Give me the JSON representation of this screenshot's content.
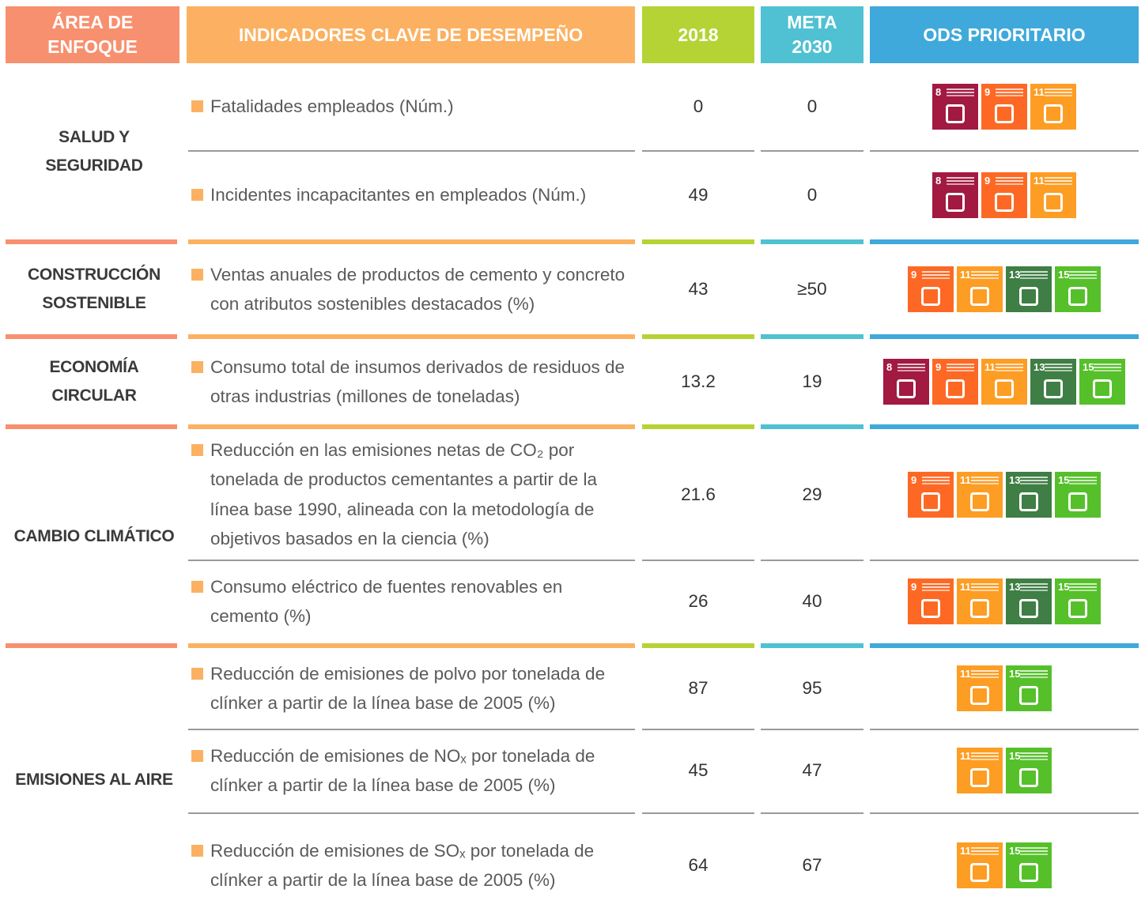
{
  "header": {
    "area": "ÁREA DE ENFOQUE",
    "indicators": "INDICADORES CLAVE DE DESEMPEÑO",
    "year": "2018",
    "target": "META 2030",
    "sdg": "ODS PRIORITARIO"
  },
  "groups": [
    {
      "area": "SALUD Y SEGURIDAD",
      "rows": [
        {
          "indicator": "Fatalidades empleados (Núm.)",
          "value_2018": 0,
          "target_2030": 0,
          "sdgs": [
            8,
            9,
            11
          ]
        },
        {
          "indicator": "Incidentes incapacitantes en empleados (Núm.)",
          "value_2018": 49,
          "target_2030": 0,
          "sdgs": [
            8,
            9,
            11
          ]
        }
      ]
    },
    {
      "area": "CONSTRUCCIÓN SOSTENIBLE",
      "rows": [
        {
          "indicator": "Ventas anuales de productos de cemento y concreto con atributos sostenibles destacados (%)",
          "value_2018": 43,
          "target_2030": "≥50",
          "sdgs": [
            9,
            11,
            13,
            15
          ]
        }
      ]
    },
    {
      "area": "ECONOMÍA CIRCULAR",
      "rows": [
        {
          "indicator": "Consumo total de insumos derivados de residuos de otras industrias (millones de toneladas)",
          "value_2018": 13.2,
          "target_2030": 19,
          "sdgs": [
            8,
            9,
            11,
            13,
            15
          ]
        }
      ]
    },
    {
      "area": "CAMBIO CLIMÁTICO",
      "rows": [
        {
          "indicator": "Reducción en las emisiones netas de CO₂ por tonelada de productos cementantes a partir de la línea base 1990, alineada con la metodología de objetivos basados en la ciencia (%)",
          "value_2018": 21.6,
          "target_2030": 29,
          "sdgs": [
            9,
            11,
            13,
            15
          ]
        },
        {
          "indicator": "Consumo eléctrico de fuentes renovables en cemento (%)",
          "value_2018": 26,
          "target_2030": 40,
          "sdgs": [
            9,
            11,
            13,
            15
          ]
        }
      ]
    },
    {
      "area": "EMISIONES AL AIRE",
      "rows": [
        {
          "indicator": "Reducción de emisiones de polvo por tonelada de clínker a partir de la línea base de 2005 (%)",
          "value_2018": 87,
          "target_2030": 95,
          "sdgs": [
            11,
            15
          ]
        },
        {
          "indicator": "Reducción de emisiones de NOₓ por tonelada de clínker a partir de la línea base de 2005 (%)",
          "value_2018": 45,
          "target_2030": 47,
          "sdgs": [
            11,
            15
          ]
        },
        {
          "indicator": "Reducción de emisiones de SOₓ por tonelada de clínker a partir de la línea base de 2005 (%)",
          "value_2018": 64,
          "target_2030": 67,
          "sdgs": [
            11,
            15
          ]
        }
      ]
    }
  ]
}
